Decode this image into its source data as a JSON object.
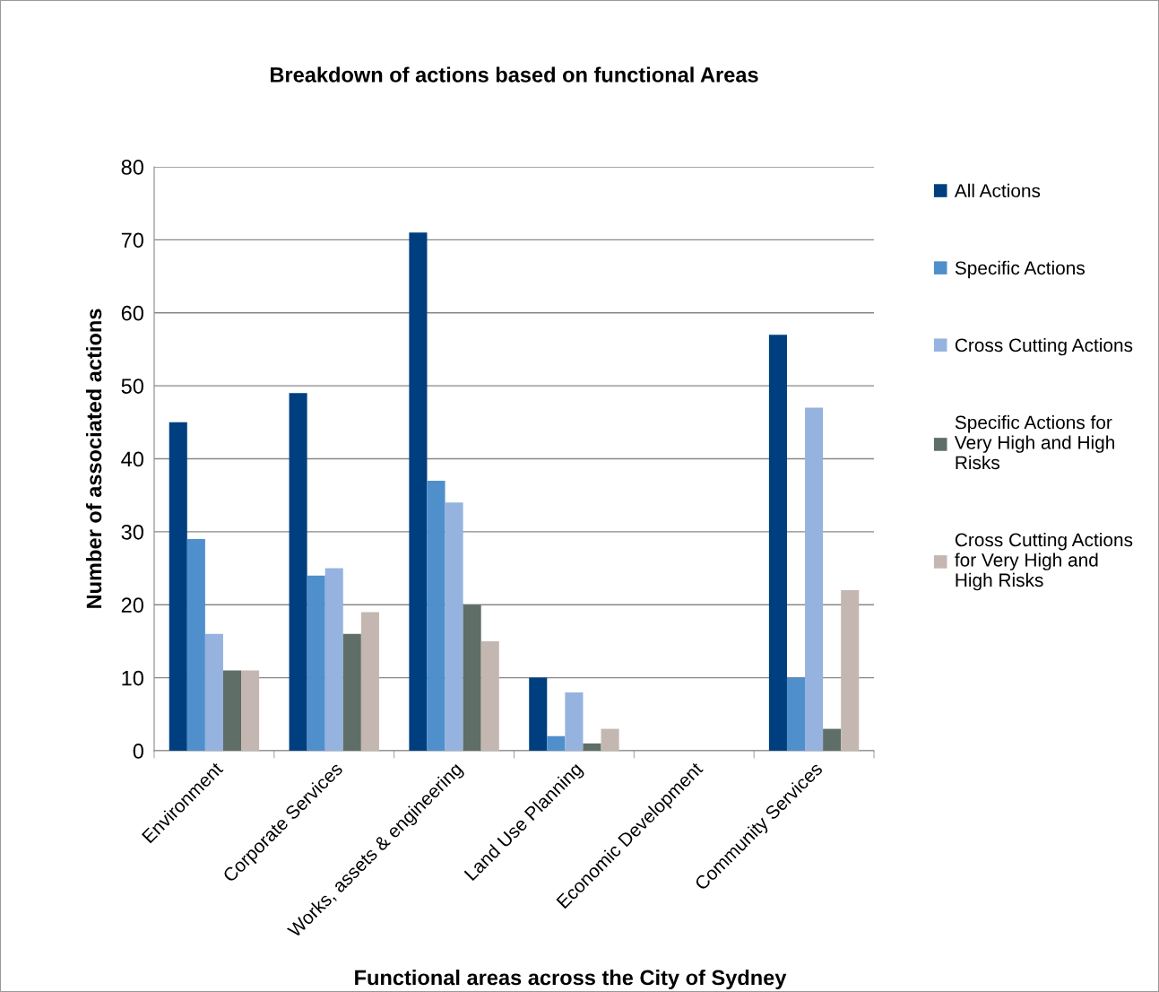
{
  "chart_data": {
    "type": "bar",
    "title": "Breakdown of actions based on functional Areas",
    "xlabel": "Functional areas across the City of Sydney",
    "ylabel": "Number of associated actions",
    "categories": [
      "Environment",
      "Corporate Services",
      "Works, assets & engineering",
      "Land Use Planning",
      "Economic Development",
      "Community Services"
    ],
    "series": [
      {
        "name": "All Actions",
        "color": "#003f7f",
        "values": [
          45,
          49,
          71,
          10,
          0,
          57
        ]
      },
      {
        "name": "Specific Actions",
        "color": "#4f8fcc",
        "values": [
          29,
          24,
          37,
          2,
          0,
          10
        ]
      },
      {
        "name": "Cross Cutting Actions",
        "color": "#95b3de",
        "values": [
          16,
          25,
          34,
          8,
          0,
          47
        ]
      },
      {
        "name": "Specific Actions for Very High and High Risks",
        "color": "#5f6e66",
        "values": [
          11,
          16,
          20,
          1,
          0,
          3
        ]
      },
      {
        "name": "Cross Cutting Actions for Very High and High Risks",
        "color": "#c4b7b1",
        "values": [
          11,
          19,
          15,
          3,
          0,
          22
        ]
      }
    ],
    "ylim": [
      0,
      80
    ],
    "yticks": [
      0,
      10,
      20,
      30,
      40,
      50,
      60,
      70,
      80
    ],
    "grid": "y",
    "legend": "right"
  }
}
